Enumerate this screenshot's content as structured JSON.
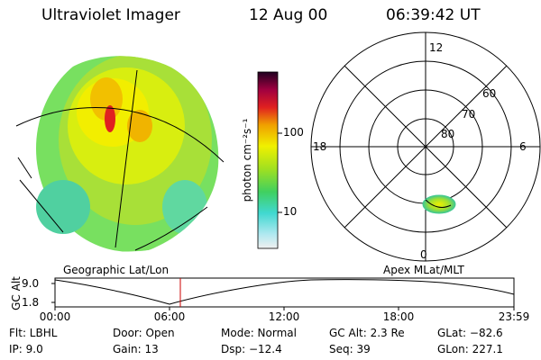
{
  "header": {
    "instrument": "Ultraviolet Imager",
    "date": "12 Aug 00",
    "time": "06:39:42 UT"
  },
  "colorbar": {
    "unit_label": "photon cm⁻²s⁻¹",
    "ticks": [
      "100",
      "10"
    ]
  },
  "polar_plot": {
    "mlt_labels": [
      "12",
      "18",
      "6",
      "0"
    ],
    "lat_labels": [
      "60",
      "70",
      "80"
    ]
  },
  "panel_titles": {
    "left": "Geographic Lat/Lon",
    "right": "Apex MLat/MLT"
  },
  "altitude_plot": {
    "axis_label": "GC Alt",
    "y_ticks": [
      "9.0",
      "1.8"
    ],
    "x_ticks": [
      "00:00",
      "06:00",
      "12:00",
      "18:00",
      "23:59"
    ],
    "marker_color": "#cc0000"
  },
  "info": {
    "filter": "Flt: LBHL",
    "ip": "IP: 9.0",
    "door": "Door: Open",
    "gain": "Gain: 13",
    "mode": "Mode: Normal",
    "dsp": "Dsp: −12.4",
    "gc_alt": "GC Alt: 2.3 Re",
    "seq": "Seq: 39",
    "glat": "GLat: −82.6",
    "glon": "GLon: 227.1"
  }
}
